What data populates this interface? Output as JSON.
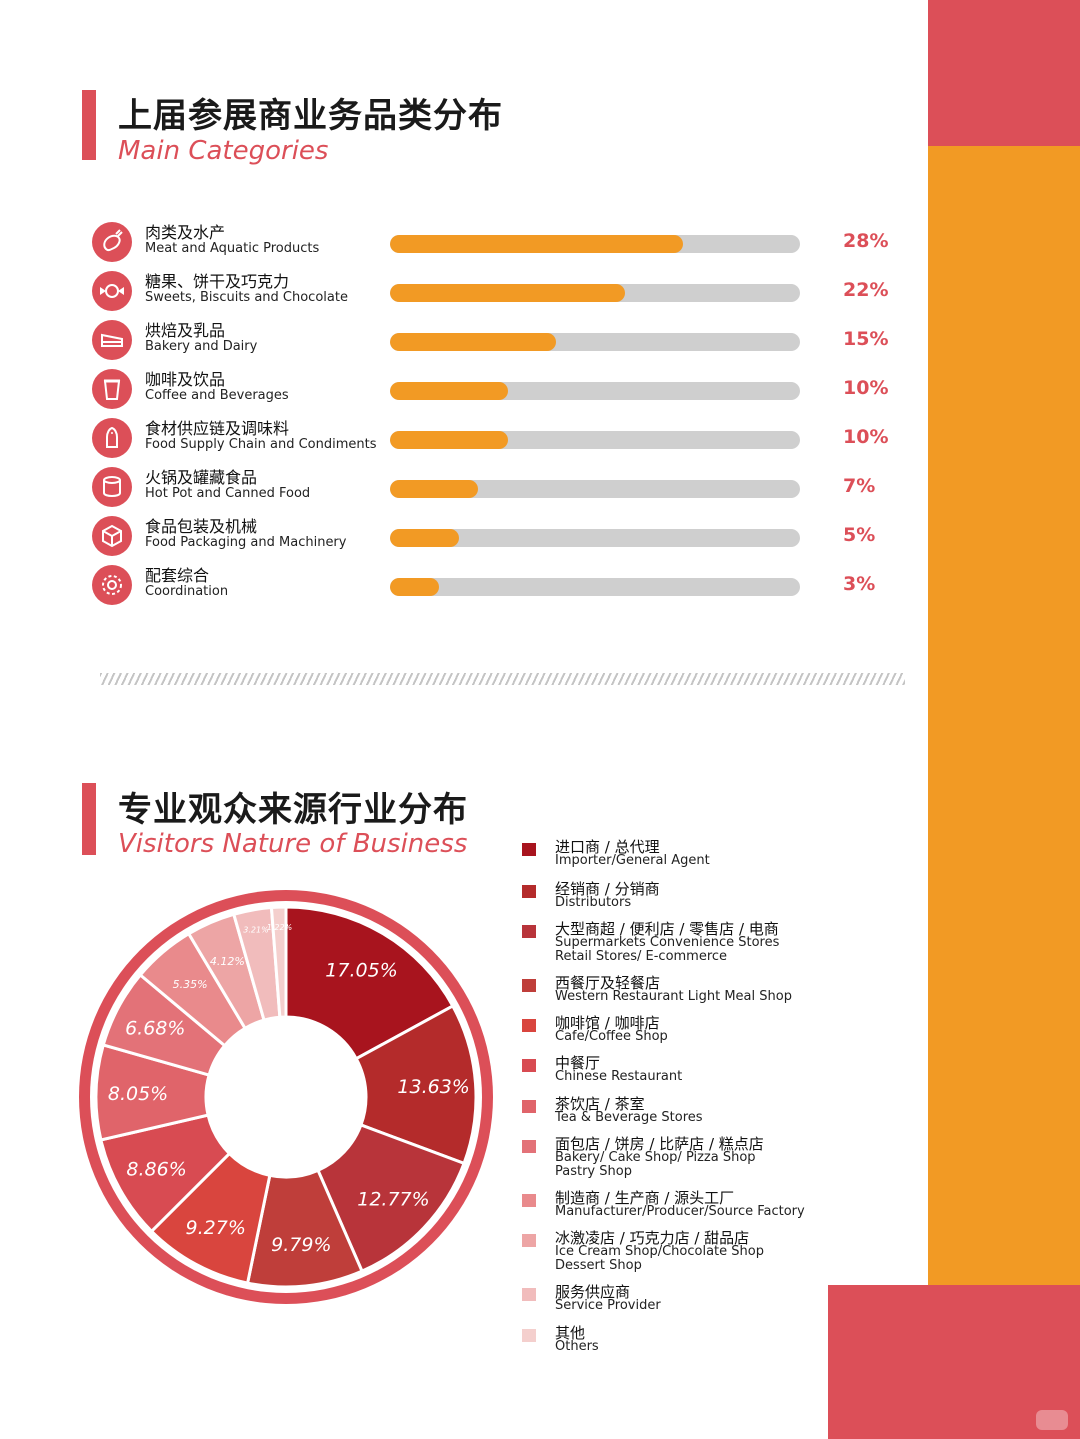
{
  "colors": {
    "accent_red": "#dc4f58",
    "accent_orange": "#f29a24",
    "track_gray": "#cfcfcf"
  },
  "section1": {
    "title": "上届参展商业务品类分布",
    "subtitle": "Main Categories",
    "items": [
      {
        "cn": "肉类及水产",
        "en": "Meat and Aquatic Products",
        "value": 28,
        "pct": "28%",
        "icon": "meat-icon"
      },
      {
        "cn": "糖果、饼干及巧克力",
        "en": "Sweets, Biscuits and Chocolate",
        "value": 22,
        "pct": "22%",
        "icon": "candy-icon"
      },
      {
        "cn": "烘焙及乳品",
        "en": "Bakery and Dairy",
        "value": 15,
        "pct": "15%",
        "icon": "cake-icon"
      },
      {
        "cn": "咖啡及饮品",
        "en": "Coffee and Beverages",
        "value": 10,
        "pct": "10%",
        "icon": "cup-icon"
      },
      {
        "cn": "食材供应链及调味料",
        "en": "Food Supply Chain and Condiments",
        "value": 10,
        "pct": "10%",
        "icon": "salt-shaker-icon"
      },
      {
        "cn": "火锅及罐藏食品",
        "en": "Hot Pot and Canned Food",
        "value": 7,
        "pct": "7%",
        "icon": "can-icon"
      },
      {
        "cn": "食品包装及机械",
        "en": "Food Packaging and Machinery",
        "value": 5,
        "pct": "5%",
        "icon": "box-icon"
      },
      {
        "cn": "配套综合",
        "en": "Coordination",
        "value": 3,
        "pct": "3%",
        "icon": "gear-icon"
      }
    ]
  },
  "section2": {
    "title": "专业观众来源行业分布",
    "subtitle": "Visitors Nature of Business"
  },
  "legend": [
    {
      "cn": "进口商 / 总代理",
      "en": "Importer/General Agent",
      "color": "#a8141e"
    },
    {
      "cn": "经销商 / 分销商",
      "en": "Distributors",
      "color": "#b42b2b"
    },
    {
      "cn": "大型商超 / 便利店 / 零售店 / 电商",
      "en": "Supermarkets Convenience Stores\nRetail Stores/ E-commerce",
      "color": "#b8343a"
    },
    {
      "cn": "西餐厅及轻餐店",
      "en": "Western Restaurant Light Meal Shop",
      "color": "#bf3e3a"
    },
    {
      "cn": "咖啡馆 / 咖啡店",
      "en": "Cafe/Coffee Shop",
      "color": "#d9453e"
    },
    {
      "cn": "中餐厅",
      "en": "Chinese Restaurant",
      "color": "#d84b52"
    },
    {
      "cn": "茶饮店 / 茶室",
      "en": "Tea & Beverage Stores",
      "color": "#e0646a"
    },
    {
      "cn": "面包店 / 饼房 / 比萨店 / 糕点店",
      "en": "Bakery/ Cake Shop/ Pizza Shop\nPastry Shop",
      "color": "#e37278"
    },
    {
      "cn": "制造商 / 生产商 / 源头工厂",
      "en": "Manufacturer/Producer/Source Factory",
      "color": "#e98a8c"
    },
    {
      "cn": "冰激凌店 / 巧克力店 / 甜品店",
      "en": "Ice Cream Shop/Chocolate Shop\nDessert Shop",
      "color": "#eda5a5"
    },
    {
      "cn": "服务供应商",
      "en": "Service Provider",
      "color": "#f1bcbc"
    },
    {
      "cn": "其他",
      "en": "Others",
      "color": "#f4cfcd"
    }
  ],
  "chart_data": [
    {
      "type": "bar",
      "orientation": "horizontal",
      "title": "上届参展商业务品类分布",
      "subtitle": "Main Categories",
      "categories": [
        "Meat and Aquatic Products",
        "Sweets, Biscuits and Chocolate",
        "Bakery and Dairy",
        "Coffee and Beverages",
        "Food Supply Chain and Condiments",
        "Hot Pot and Canned Food",
        "Food Packaging and Machinery",
        "Coordination"
      ],
      "values": [
        28,
        22,
        15,
        10,
        10,
        7,
        5,
        3
      ],
      "unit": "%"
    },
    {
      "type": "pie",
      "title": "专业观众来源行业分布",
      "subtitle": "Visitors Nature of Business",
      "donut": true,
      "start": "12 o'clock, clockwise",
      "categories": [
        "Importer/General Agent",
        "Distributors",
        "Supermarkets Convenience Stores Retail Stores/ E-commerce",
        "Western Restaurant Light Meal Shop",
        "Cafe/Coffee Shop",
        "Chinese Restaurant",
        "Tea & Beverage Stores",
        "Bakery/ Cake Shop/ Pizza Shop Pastry Shop",
        "Manufacturer/Producer/Source Factory",
        "Ice Cream Shop/Chocolate Shop Dessert Shop",
        "Service Provider",
        "Others"
      ],
      "values": [
        17.05,
        13.63,
        12.77,
        9.79,
        9.27,
        8.86,
        8.05,
        6.68,
        5.35,
        4.12,
        3.21,
        1.22
      ],
      "labels": [
        "17.05%",
        "13.63%",
        "12.77%",
        "9.79%",
        "9.27%",
        "8.86%",
        "8.05%",
        "6.68%",
        "5.35%",
        "4.12%",
        "3.21%",
        "1.22%"
      ],
      "colors": [
        "#a8141e",
        "#b42b2b",
        "#b8343a",
        "#bf3e3a",
        "#d9453e",
        "#d84b52",
        "#e0646a",
        "#e37278",
        "#e98a8c",
        "#eda5a5",
        "#f1bcbc",
        "#f4cfcd"
      ],
      "legend_position": "right"
    }
  ]
}
